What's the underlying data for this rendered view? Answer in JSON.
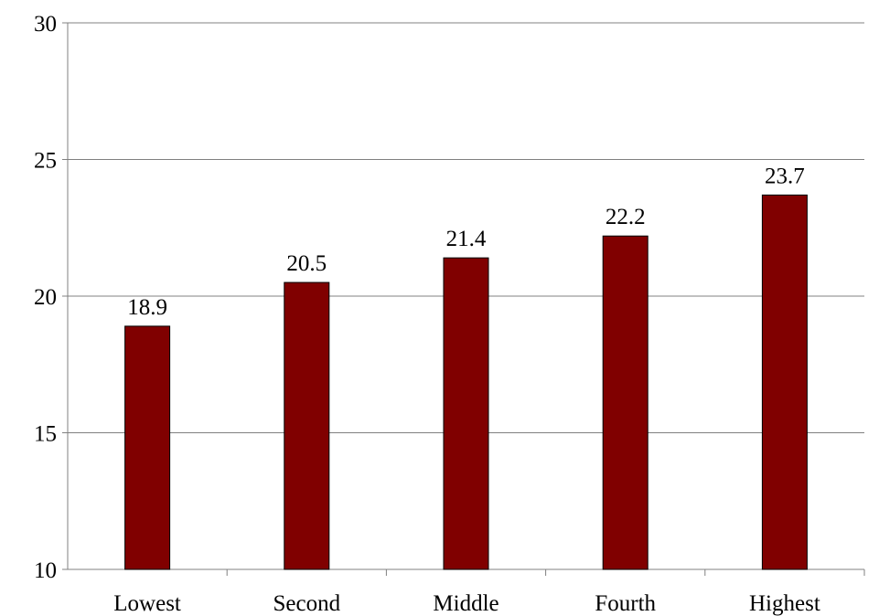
{
  "chart_data": {
    "type": "bar",
    "categories": [
      "Lowest",
      "Second",
      "Middle",
      "Fourth",
      "Highest"
    ],
    "values": [
      18.9,
      20.5,
      21.4,
      22.2,
      23.7
    ],
    "data_labels": [
      "18.9",
      "20.5",
      "21.4",
      "22.2",
      "23.7"
    ],
    "ylim": [
      10,
      30
    ],
    "yticks": [
      10,
      15,
      20,
      25,
      30
    ],
    "ytick_labels": [
      "10",
      "15",
      "20",
      "25",
      "30"
    ],
    "title": "",
    "xlabel": "",
    "ylabel": "",
    "grid": "horizontal",
    "legend": "none",
    "bar_color": "#800000",
    "bar_edge_color": "#000000",
    "grid_color": "#808080"
  }
}
